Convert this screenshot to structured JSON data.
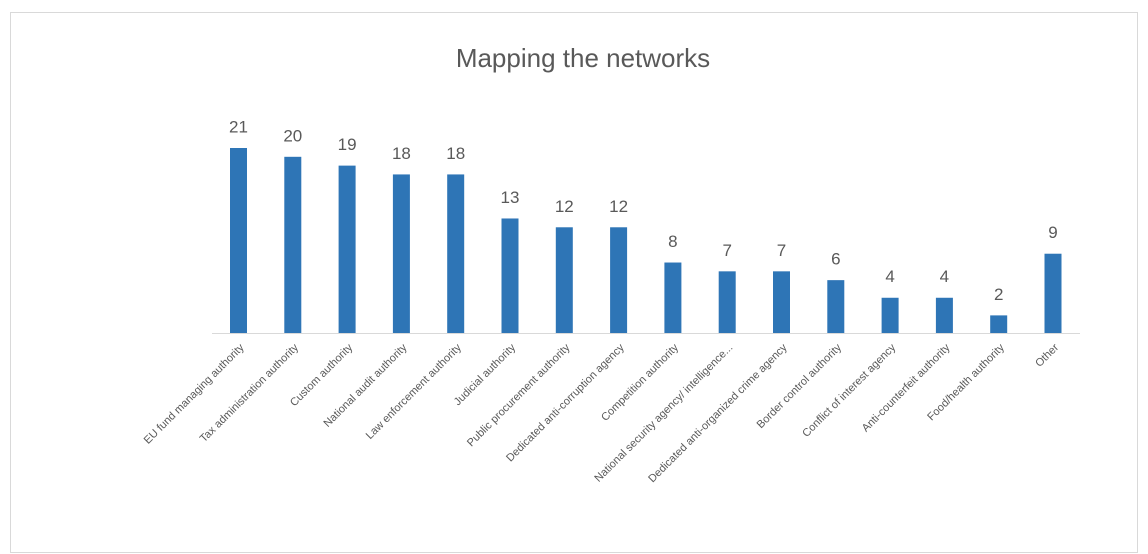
{
  "chart_data": {
    "type": "bar",
    "title": "Mapping the networks",
    "categories": [
      "EU fund managing authority",
      "Tax administration authority",
      "Custom authority",
      "National audit authority",
      "Law enforcement authority",
      "Judicial authority",
      "Public procurement authority",
      "Dedicated anti-corruption agency",
      "Competition authority",
      "National security agency/ intelligence...",
      "Dedicated anti-organized crime agency",
      "Border control authority",
      "Conflict of interest agency",
      "Anti-counterfeit authority",
      "Food/health authority",
      "Other"
    ],
    "values": [
      21,
      20,
      19,
      18,
      18,
      13,
      12,
      12,
      8,
      7,
      7,
      6,
      4,
      4,
      2,
      9
    ],
    "color": "#2e75b6"
  }
}
